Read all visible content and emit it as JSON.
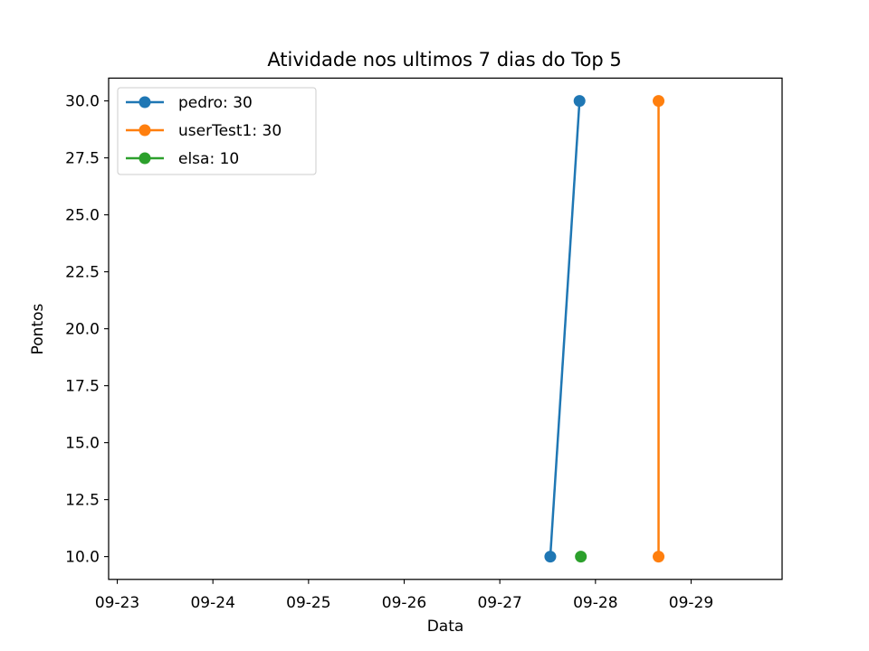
{
  "chart_data": {
    "type": "line",
    "title": "Atividade nos ultimos 7 dias do Top 5",
    "xlabel": "Data",
    "ylabel": "Pontos",
    "xlim": [
      "2023-09-22T21:50",
      "2023-09-29T22:50"
    ],
    "ylim": [
      9.0,
      31.0
    ],
    "x_ticks": [
      {
        "value": "2023-09-23T00:00",
        "label": "09-23"
      },
      {
        "value": "2023-09-24T00:00",
        "label": "09-24"
      },
      {
        "value": "2023-09-25T00:00",
        "label": "09-25"
      },
      {
        "value": "2023-09-26T00:00",
        "label": "09-26"
      },
      {
        "value": "2023-09-27T00:00",
        "label": "09-27"
      },
      {
        "value": "2023-09-28T00:00",
        "label": "09-28"
      },
      {
        "value": "2023-09-29T00:00",
        "label": "09-29"
      }
    ],
    "y_ticks": [
      {
        "value": 10.0,
        "label": "10.0"
      },
      {
        "value": 12.5,
        "label": "12.5"
      },
      {
        "value": 15.0,
        "label": "15.0"
      },
      {
        "value": 17.5,
        "label": "17.5"
      },
      {
        "value": 20.0,
        "label": "20.0"
      },
      {
        "value": 22.5,
        "label": "22.5"
      },
      {
        "value": 25.0,
        "label": "25.0"
      },
      {
        "value": 27.5,
        "label": "27.5"
      },
      {
        "value": 30.0,
        "label": "30.0"
      }
    ],
    "grid": false,
    "legend_position": "upper-left",
    "series": [
      {
        "name": "pedro: 30",
        "color": "#1f77b4",
        "points": [
          {
            "x": "2023-09-27T12:40",
            "y": 10
          },
          {
            "x": "2023-09-27T20:00",
            "y": 30
          }
        ]
      },
      {
        "name": "userTest1: 30",
        "color": "#ff7f0e",
        "points": [
          {
            "x": "2023-09-28T15:50",
            "y": 30
          },
          {
            "x": "2023-09-28T15:50",
            "y": 10
          }
        ]
      },
      {
        "name": "elsa: 10",
        "color": "#2ca02c",
        "points": [
          {
            "x": "2023-09-27T20:20",
            "y": 10
          }
        ]
      }
    ]
  }
}
